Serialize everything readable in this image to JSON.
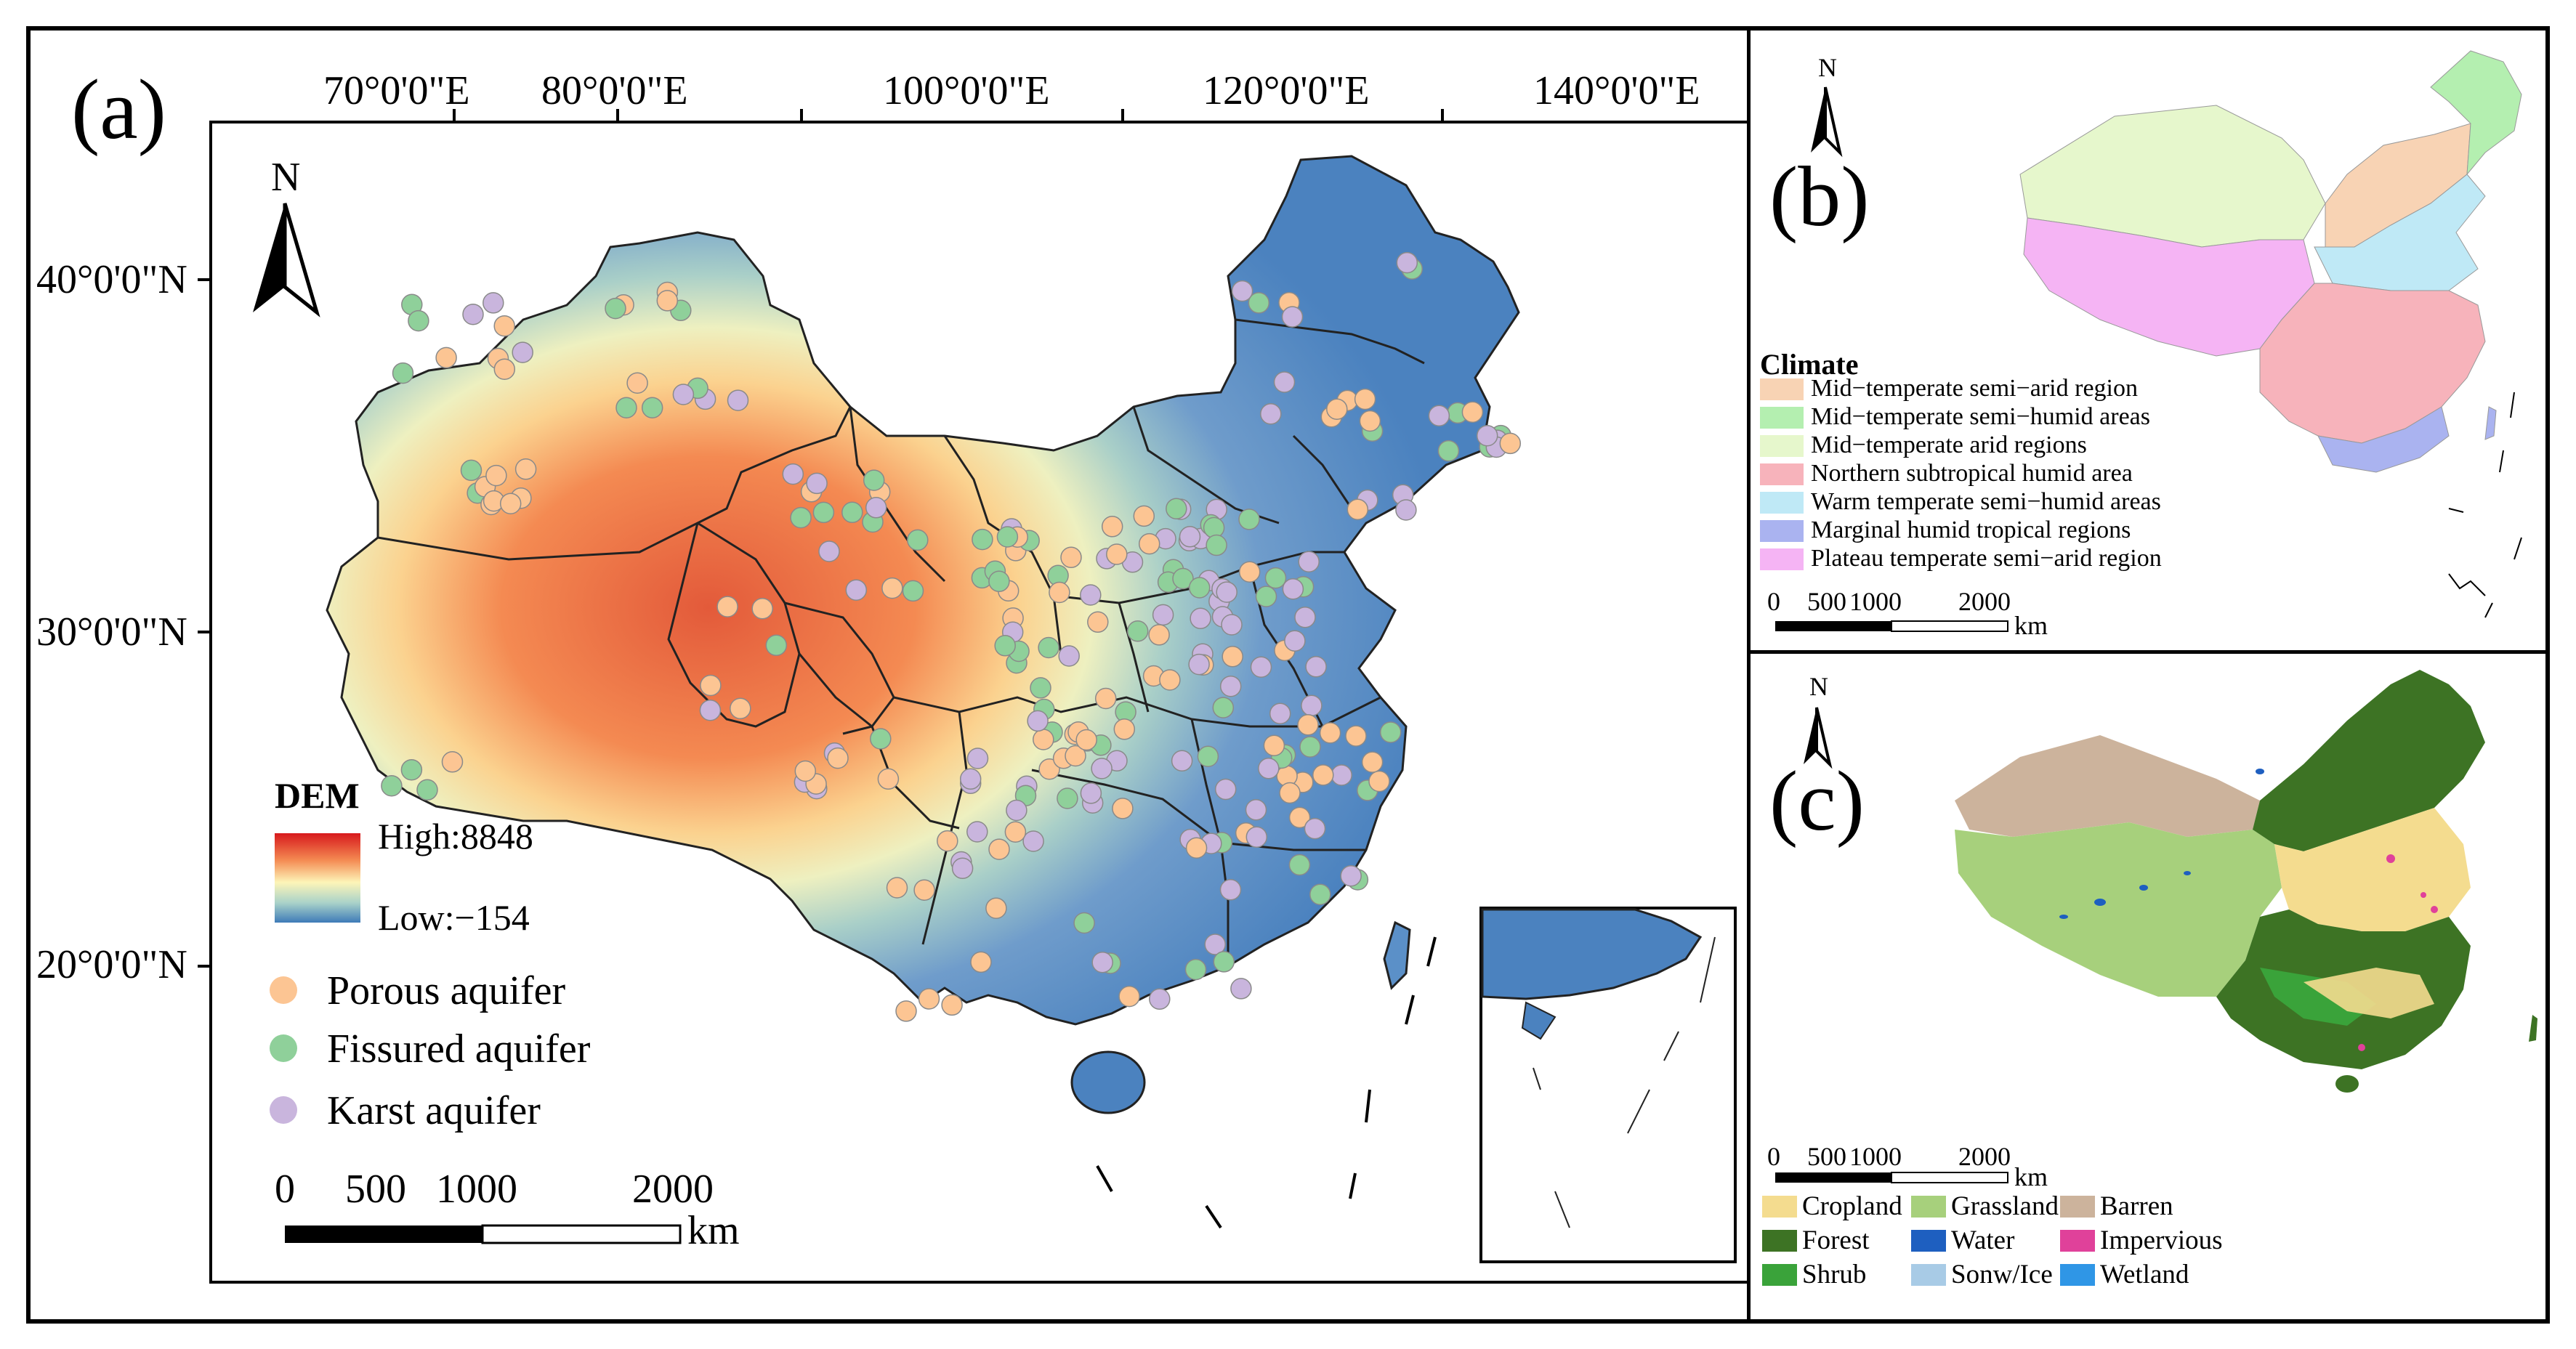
{
  "panel_a": {
    "label": "(a)",
    "lon_labels": [
      "70°0'0\"E",
      "80°0'0\"E",
      "100°0'0\"E",
      "120°0'0\"E",
      "140°0'0\"E"
    ],
    "lat_labels": [
      "40°0'0\"N",
      "30°0'0\"N",
      "20°0'0\"N"
    ],
    "north_label": "N",
    "dem": {
      "title": "DEM",
      "high": "High:8848",
      "low": "Low:−154",
      "colors": [
        "#d7191c",
        "#f48a52",
        "#fdf5b8",
        "#a9d2c9",
        "#3e7bb8"
      ]
    },
    "aquifers": [
      {
        "label": "Porous aquifer",
        "color": "#fcc593"
      },
      {
        "label": "Fissured aquifer",
        "color": "#8fd09a"
      },
      {
        "label": "Karst aquifer",
        "color": "#c9b5dd"
      }
    ],
    "scale": {
      "ticks": [
        "0",
        "500",
        "1000",
        "2000"
      ],
      "unit": "km"
    }
  },
  "panel_b": {
    "label": "(b)",
    "north_label": "N",
    "legend_title": "Climate",
    "legend": [
      {
        "label": "Mid−temperate semi−arid region",
        "color": "#f8d3b4"
      },
      {
        "label": "Mid−temperate semi−humid areas",
        "color": "#b4efb0"
      },
      {
        "label": "Mid−temperate arid regions",
        "color": "#e6f7cc"
      },
      {
        "label": "Northern subtropical humid area",
        "color": "#f7b3bb"
      },
      {
        "label": "Warm temperate semi−humid areas",
        "color": "#bfe9f6"
      },
      {
        "label": "Marginal humid tropical regions",
        "color": "#aab3f0"
      },
      {
        "label": "Plateau temperate semi−arid region",
        "color": "#f5b4f4"
      }
    ],
    "scale": {
      "ticks": [
        "0",
        "500",
        "1000",
        "2000"
      ],
      "unit": "km"
    }
  },
  "panel_c": {
    "label": "(c)",
    "north_label": "N",
    "legend": [
      {
        "label": "Cropland",
        "color": "#f4dc8f"
      },
      {
        "label": "Grassland",
        "color": "#a7d07c"
      },
      {
        "label": "Barren",
        "color": "#ccb39c"
      },
      {
        "label": "Forest",
        "color": "#3d7324"
      },
      {
        "label": "Water",
        "color": "#1e5fc0"
      },
      {
        "label": "Impervious",
        "color": "#e0419a"
      },
      {
        "label": "Shrub",
        "color": "#3aa33a"
      },
      {
        "label": "Sonw/Ice",
        "color": "#a8cbe6"
      },
      {
        "label": "Wetland",
        "color": "#2f96e6"
      }
    ],
    "scale": {
      "ticks": [
        "0",
        "500",
        "1000",
        "2000"
      ],
      "unit": "km"
    }
  }
}
